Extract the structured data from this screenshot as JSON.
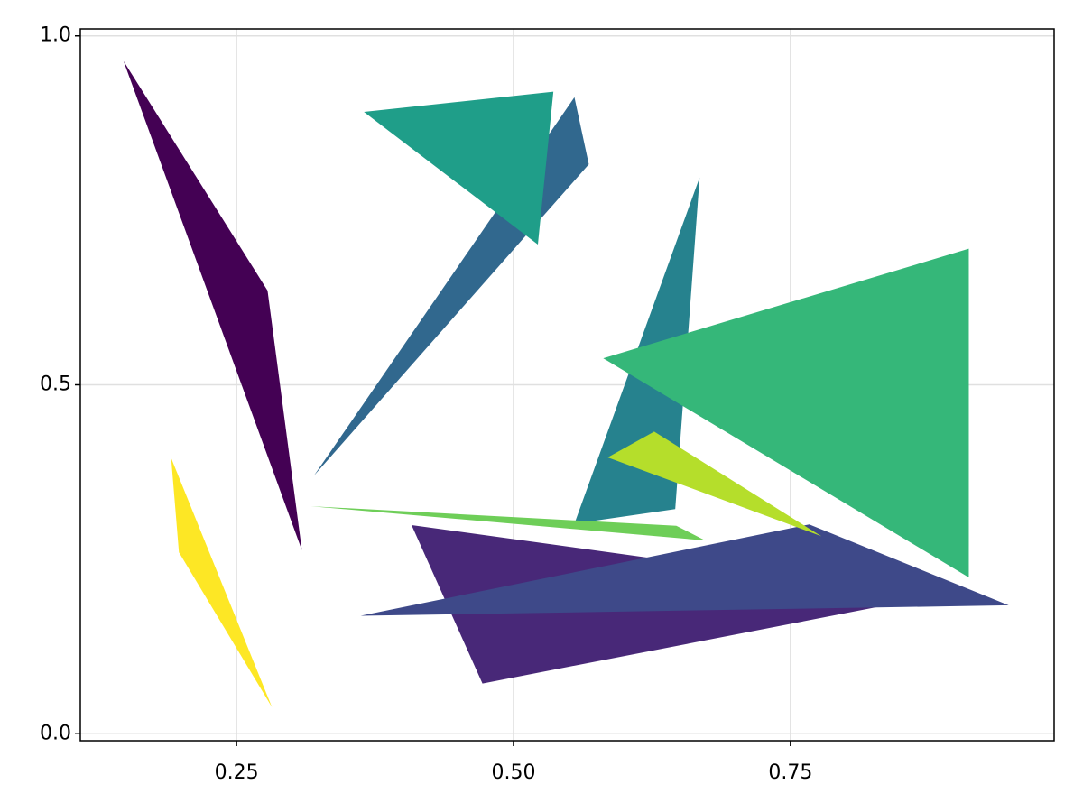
{
  "chart_data": {
    "type": "polygon",
    "xlim": [
      0.109,
      0.988
    ],
    "ylim": [
      -0.01,
      1.01
    ],
    "xticks": [
      0.25,
      {
        "value": 0.5,
        "label": "0.50"
      },
      0.75
    ],
    "yticks": [
      {
        "value": 0,
        "label": "0.0"
      },
      0.5,
      {
        "value": 1,
        "label": "1.0"
      }
    ],
    "grid": true,
    "polygons": [
      {
        "color": "#440154",
        "x": [
          0.148,
          0.278,
          0.309
        ],
        "y": [
          0.964,
          0.635,
          0.263
        ]
      },
      {
        "color": "#482878",
        "x": [
          0.408,
          0.472,
          0.859,
          0.623
        ],
        "y": [
          0.299,
          0.072,
          0.191,
          0.252
        ]
      },
      {
        "color": "#3e4989",
        "x": [
          0.362,
          0.767,
          0.947
        ],
        "y": [
          0.169,
          0.3,
          0.184
        ]
      },
      {
        "color": "#31688e",
        "x": [
          0.32,
          0.555,
          0.568
        ],
        "y": [
          0.37,
          0.912,
          0.816
        ]
      },
      {
        "color": "#26828e",
        "x": [
          0.555,
          0.668,
          0.646
        ],
        "y": [
          0.301,
          0.797,
          0.322
        ]
      },
      {
        "color": "#1f9e89",
        "x": [
          0.365,
          0.536,
          0.522
        ],
        "y": [
          0.891,
          0.92,
          0.701
        ]
      },
      {
        "color": "#35b779",
        "x": [
          0.581,
          0.911,
          0.911
        ],
        "y": [
          0.538,
          0.695,
          0.224
        ]
      },
      {
        "color": "#6ece58",
        "x": [
          0.317,
          0.647,
          0.673
        ],
        "y": [
          0.326,
          0.298,
          0.277
        ]
      },
      {
        "color": "#b5de2b",
        "x": [
          0.585,
          0.627,
          0.778
        ],
        "y": [
          0.396,
          0.433,
          0.283
        ]
      },
      {
        "color": "#fde725",
        "x": [
          0.191,
          0.198,
          0.282
        ],
        "y": [
          0.395,
          0.26,
          0.038
        ]
      }
    ]
  }
}
